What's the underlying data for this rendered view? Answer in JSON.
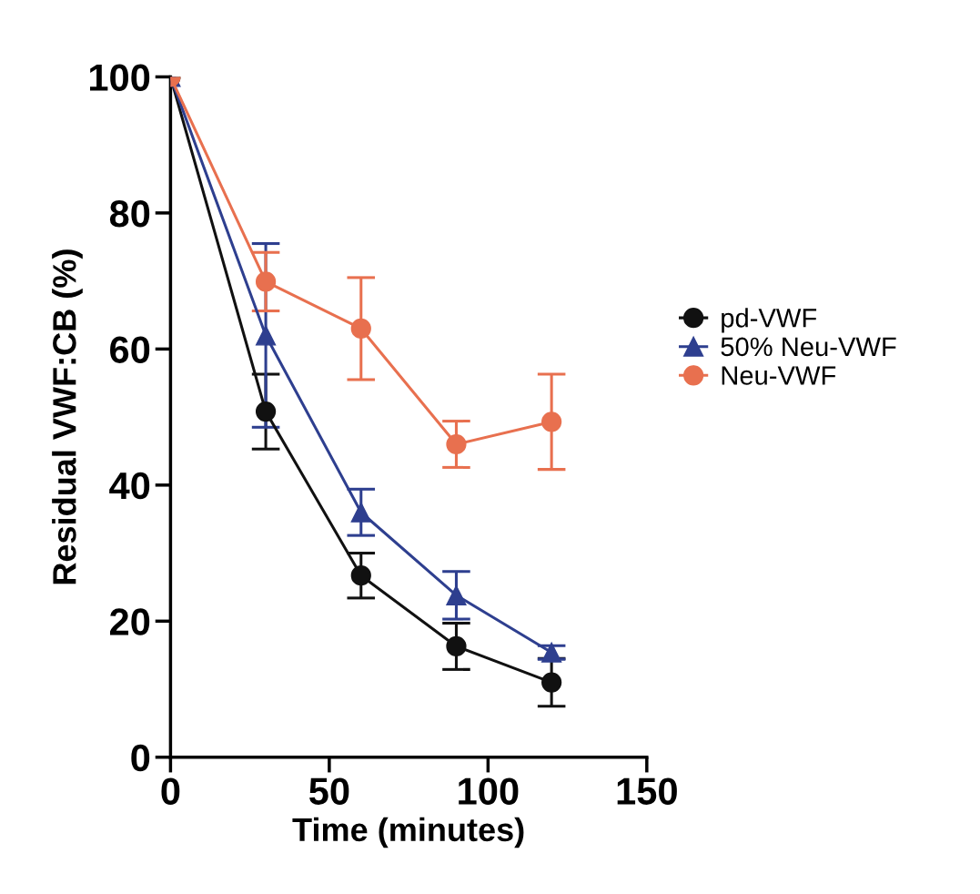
{
  "chart_data": {
    "type": "line",
    "xlabel": "Time (minutes)",
    "ylabel": "Residual VWF:CB (%)",
    "x": [
      0,
      30,
      60,
      90,
      120
    ],
    "series": [
      {
        "name": "pd-VWF",
        "color": "#111111",
        "marker": "circle",
        "values": [
          100,
          50.8,
          26.7,
          16.3,
          11.0
        ],
        "errors": [
          null,
          5.5,
          3.3,
          3.4,
          3.5
        ]
      },
      {
        "name": "50% Neu-VWF",
        "color": "#2e3f8f",
        "marker": "triangle",
        "values": [
          100,
          62.0,
          36.0,
          23.8,
          15.4
        ],
        "errors": [
          null,
          13.5,
          3.4,
          3.5,
          1.0
        ]
      },
      {
        "name": "Neu-VWF",
        "color": "#e8704f",
        "marker": "circle",
        "values": [
          100,
          69.9,
          63.0,
          46.0,
          49.3
        ],
        "errors": [
          null,
          4.3,
          7.5,
          3.4,
          7.0
        ]
      }
    ],
    "xlim": [
      0,
      150
    ],
    "xticks": [
      0,
      50,
      100,
      150
    ],
    "ylim": [
      0,
      100
    ],
    "yticks": [
      0,
      20,
      40,
      60,
      80,
      100
    ],
    "grid": false,
    "legend": "right",
    "line_style": "solid"
  }
}
